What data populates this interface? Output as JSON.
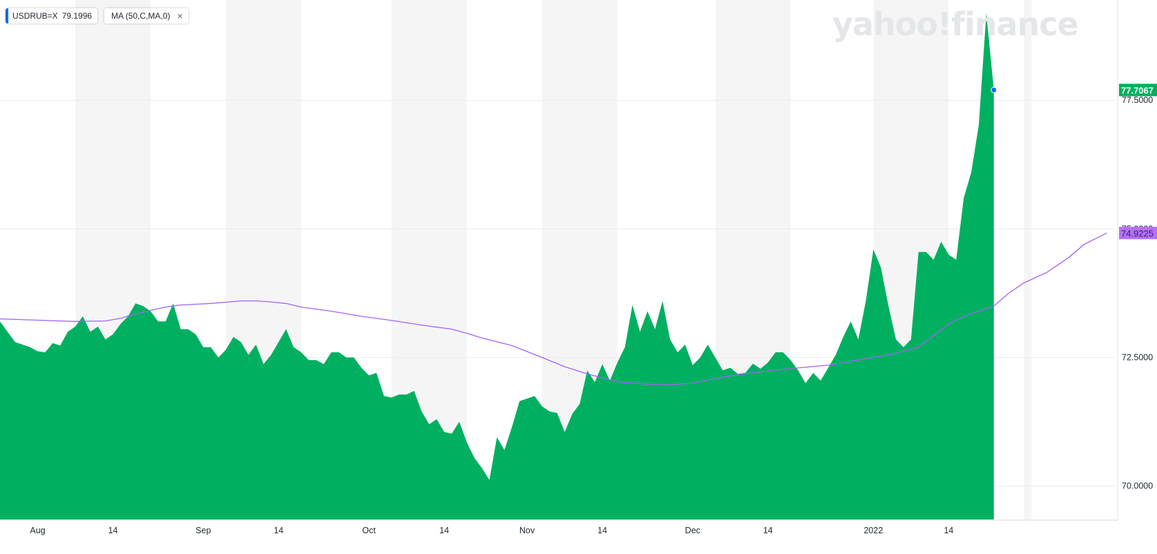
{
  "legend": {
    "symbol": "USDRUB=X",
    "symbol_value": "79.1996",
    "indicator": "MA (50,C,MA,0)",
    "close_glyph": "×"
  },
  "watermark": "yahoo!finance",
  "colors": {
    "area": "#00b060",
    "ma_line": "#a162f7",
    "last_price_tag": "#00b060",
    "ma_tag": "#b471f7",
    "dot": "#0f69ff",
    "band": "#f5f5f6"
  },
  "chart_data": {
    "type": "area",
    "xlabel": "",
    "ylabel": "",
    "ylim": [
      69.35,
      79.45
    ],
    "grid": true,
    "y_ticks": [
      {
        "value": 70.0,
        "label": "70.0000"
      },
      {
        "value": 72.5,
        "label": "72.5000"
      },
      {
        "value": 75.0,
        "label": "75.0000"
      },
      {
        "value": 77.5,
        "label": "77.5000"
      }
    ],
    "x_ticks": [
      {
        "day": 5,
        "label": "Aug"
      },
      {
        "day": 15,
        "label": "14"
      },
      {
        "day": 27,
        "label": "Sep"
      },
      {
        "day": 37,
        "label": "14"
      },
      {
        "day": 49,
        "label": "Oct"
      },
      {
        "day": 59,
        "label": "14"
      },
      {
        "day": 70,
        "label": "Nov"
      },
      {
        "day": 80,
        "label": "14"
      },
      {
        "day": 92,
        "label": "Dec"
      },
      {
        "day": 102,
        "label": "14"
      },
      {
        "day": 116,
        "label": "2022"
      },
      {
        "day": 126,
        "label": "14"
      }
    ],
    "bands": [
      [
        -3,
        0
      ],
      [
        10,
        20
      ],
      [
        30,
        40
      ],
      [
        52,
        62
      ],
      [
        72,
        82
      ],
      [
        95,
        105
      ],
      [
        116,
        126
      ],
      [
        136,
        137
      ]
    ],
    "series": [
      {
        "name": "USDRUB=X",
        "values": [
          73.2,
          73.0,
          72.8,
          72.75,
          72.7,
          72.62,
          72.6,
          72.78,
          72.73,
          73.0,
          73.1,
          73.3,
          73.0,
          73.1,
          72.85,
          72.95,
          73.15,
          73.3,
          73.55,
          73.5,
          73.4,
          73.2,
          73.2,
          73.55,
          73.05,
          73.05,
          72.95,
          72.7,
          72.7,
          72.5,
          72.65,
          72.9,
          72.8,
          72.55,
          72.75,
          72.37,
          72.55,
          72.8,
          73.05,
          72.7,
          72.6,
          72.45,
          72.45,
          72.37,
          72.6,
          72.6,
          72.5,
          72.5,
          72.3,
          72.15,
          72.2,
          71.75,
          71.72,
          71.78,
          71.78,
          71.85,
          71.45,
          71.2,
          71.3,
          71.05,
          71.02,
          71.25,
          70.85,
          70.55,
          70.35,
          70.12,
          70.95,
          70.7,
          71.15,
          71.65,
          71.7,
          71.75,
          71.55,
          71.45,
          71.42,
          71.05,
          71.4,
          71.6,
          72.25,
          72.02,
          72.37,
          72.05,
          72.4,
          72.7,
          73.52,
          73.0,
          73.4,
          73.05,
          73.6,
          72.85,
          72.6,
          72.75,
          72.35,
          72.5,
          72.75,
          72.5,
          72.25,
          72.3,
          72.18,
          72.2,
          72.38,
          72.28,
          72.4,
          72.6,
          72.6,
          72.45,
          72.25,
          72.0,
          72.2,
          72.05,
          72.3,
          72.55,
          72.9,
          73.2,
          72.85,
          73.6,
          74.6,
          74.25,
          73.5,
          72.85,
          72.7,
          72.85,
          74.55,
          74.55,
          74.4,
          74.75,
          74.5,
          74.4,
          75.6,
          76.1,
          77.02,
          79.2,
          77.7
        ],
        "x_start": 0
      },
      {
        "name": "MA (50,C,MA,0)",
        "points": [
          [
            0,
            73.25
          ],
          [
            6,
            73.22
          ],
          [
            10,
            73.2
          ],
          [
            14,
            73.21
          ],
          [
            16,
            73.26
          ],
          [
            18,
            73.35
          ],
          [
            22,
            73.48
          ],
          [
            24,
            73.52
          ],
          [
            28,
            73.55
          ],
          [
            32,
            73.6
          ],
          [
            34,
            73.6
          ],
          [
            36,
            73.58
          ],
          [
            38,
            73.55
          ],
          [
            40,
            73.48
          ],
          [
            44,
            73.4
          ],
          [
            48,
            73.3
          ],
          [
            52,
            73.22
          ],
          [
            56,
            73.13
          ],
          [
            60,
            73.05
          ],
          [
            62,
            72.97
          ],
          [
            64,
            72.88
          ],
          [
            68,
            72.73
          ],
          [
            72,
            72.5
          ],
          [
            75,
            72.32
          ],
          [
            78,
            72.18
          ],
          [
            82,
            72.03
          ],
          [
            86,
            71.98
          ],
          [
            89,
            71.97
          ],
          [
            92,
            72.0
          ],
          [
            96,
            72.12
          ],
          [
            100,
            72.2
          ],
          [
            104,
            72.27
          ],
          [
            110,
            72.35
          ],
          [
            114,
            72.45
          ],
          [
            118,
            72.55
          ],
          [
            122,
            72.7
          ],
          [
            126,
            73.15
          ],
          [
            128,
            73.3
          ],
          [
            132,
            73.5
          ],
          [
            134,
            73.75
          ],
          [
            136,
            73.95
          ],
          [
            139,
            74.15
          ],
          [
            142,
            74.45
          ],
          [
            144,
            74.7
          ],
          [
            147,
            74.92
          ]
        ],
        "last_value": "74.9225"
      }
    ],
    "last_price": "77.7067"
  }
}
